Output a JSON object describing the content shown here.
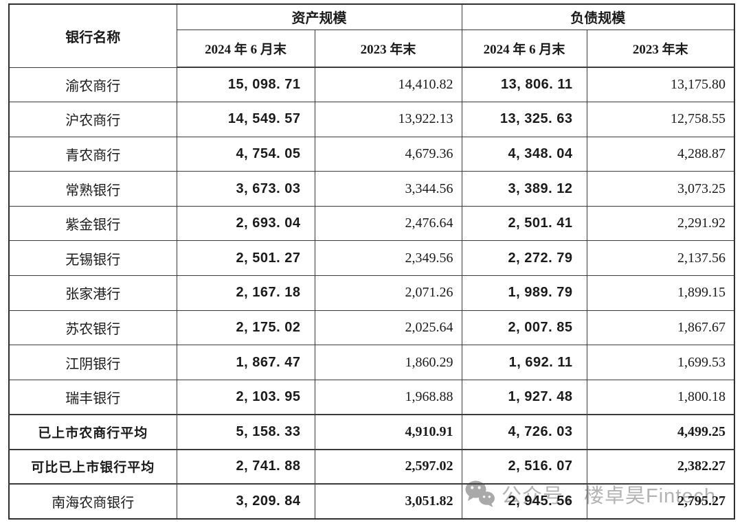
{
  "table": {
    "header": {
      "bank_name_label": "银行名称",
      "asset_group_label": "资产规模",
      "liability_group_label": "负债规模",
      "sub_columns": [
        "2024 年 6 月末",
        "2023 年末",
        "2024 年 6 月末",
        "2023 年末"
      ]
    },
    "rows": [
      {
        "name": "渝农商行",
        "bold_name": false,
        "bold_serif": false,
        "cells": [
          "15, 098. 71",
          "14,410.82",
          "13, 806. 11",
          "13,175.80"
        ]
      },
      {
        "name": "沪农商行",
        "bold_name": false,
        "bold_serif": false,
        "cells": [
          "14, 549. 57",
          "13,922.13",
          "13, 325. 63",
          "12,758.55"
        ]
      },
      {
        "name": "青农商行",
        "bold_name": false,
        "bold_serif": false,
        "cells": [
          "4, 754. 05",
          "4,679.36",
          "4, 348. 04",
          "4,288.87"
        ]
      },
      {
        "name": "常熟银行",
        "bold_name": false,
        "bold_serif": false,
        "cells": [
          "3, 673. 03",
          "3,344.56",
          "3, 389. 12",
          "3,073.25"
        ]
      },
      {
        "name": "紫金银行",
        "bold_name": false,
        "bold_serif": false,
        "cells": [
          "2, 693. 04",
          "2,476.64",
          "2, 501. 41",
          "2,291.92"
        ]
      },
      {
        "name": "无锡银行",
        "bold_name": false,
        "bold_serif": false,
        "cells": [
          "2, 501. 27",
          "2,349.56",
          "2, 272. 79",
          "2,137.56"
        ]
      },
      {
        "name": "张家港行",
        "bold_name": false,
        "bold_serif": false,
        "cells": [
          "2, 167. 18",
          "2,071.26",
          "1, 989. 79",
          "1,899.15"
        ]
      },
      {
        "name": "苏农银行",
        "bold_name": false,
        "bold_serif": false,
        "cells": [
          "2, 175. 02",
          "2,025.64",
          "2, 007. 85",
          "1,867.67"
        ]
      },
      {
        "name": "江阴银行",
        "bold_name": false,
        "bold_serif": false,
        "cells": [
          "1, 867. 47",
          "1,860.29",
          "1, 692. 11",
          "1,699.53"
        ]
      },
      {
        "name": "瑞丰银行",
        "bold_name": false,
        "bold_serif": false,
        "cells": [
          "2, 103. 95",
          "1,968.88",
          "1, 927. 48",
          "1,800.18"
        ]
      },
      {
        "name": "已上市农商行平均",
        "bold_name": true,
        "bold_serif": true,
        "cells": [
          "5, 158. 33",
          "4,910.91",
          "4, 726. 03",
          "4,499.25"
        ]
      },
      {
        "name": "可比已上市银行平均",
        "bold_name": true,
        "bold_serif": true,
        "cells": [
          "2, 741. 88",
          "2,597.02",
          "2, 516. 07",
          "2,382.27"
        ]
      },
      {
        "name": "南海农商银行",
        "bold_name": false,
        "bold_serif": true,
        "cells": [
          "3, 209. 84",
          "3,051.82",
          "2, 945. 56",
          "2,795.27"
        ]
      }
    ]
  },
  "watermark": {
    "icon": "wechat-icon",
    "text": "公众号，楼卓昊Fintech"
  },
  "colors": {
    "border": "#3a3a3a",
    "text": "#1a1a1a",
    "watermark": "#b3b3b3"
  }
}
